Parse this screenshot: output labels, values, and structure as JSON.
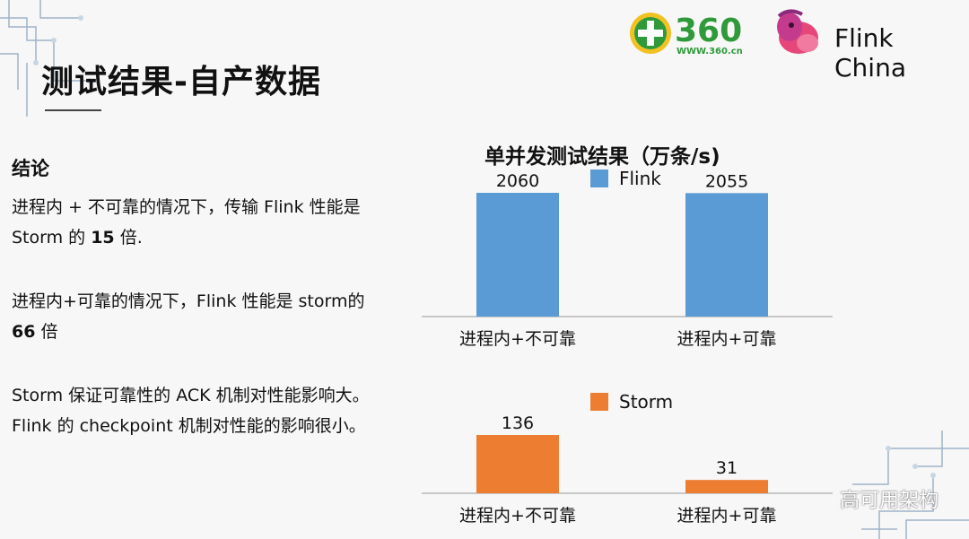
{
  "slide": {
    "title": "测试结果-自产数据",
    "conclusion_heading": "结论",
    "p1": {
      "l1": "进程内 + 不可靠的情况下，传输 Flink 性能是",
      "l2_pre": "Storm 的 ",
      "l2_bold": "15",
      "l2_post": " 倍."
    },
    "p2": {
      "l1": "进程内+可靠的情况下，Flink  性能是  storm的",
      "l2_bold": "66",
      "l2_post": " 倍"
    },
    "p3": {
      "l1": "Storm 保证可靠性的 ACK 机制对性能影响大。",
      "l2": "Flink 的 checkpoint 机制对性能的影响很小。"
    }
  },
  "logos": {
    "brand360": "360",
    "brand360_url": "WWW.360.cn",
    "flink_china": "Flink China"
  },
  "watermark": "高可用架构",
  "colors": {
    "flink": "#5b9bd5",
    "storm": "#ed7d31",
    "logo_green": "#2f9a3a",
    "logo_yellow": "#f2c224"
  },
  "chart_data": {
    "type": "bar",
    "title": "单并发测试结果（万条/s)",
    "categories": [
      "进程内+不可靠",
      "进程内+可靠"
    ],
    "series": [
      {
        "name": "Flink",
        "values": [
          2060,
          2055
        ],
        "color": "#5b9bd5"
      },
      {
        "name": "Storm",
        "values": [
          136,
          31
        ],
        "color": "#ed7d31"
      }
    ]
  }
}
